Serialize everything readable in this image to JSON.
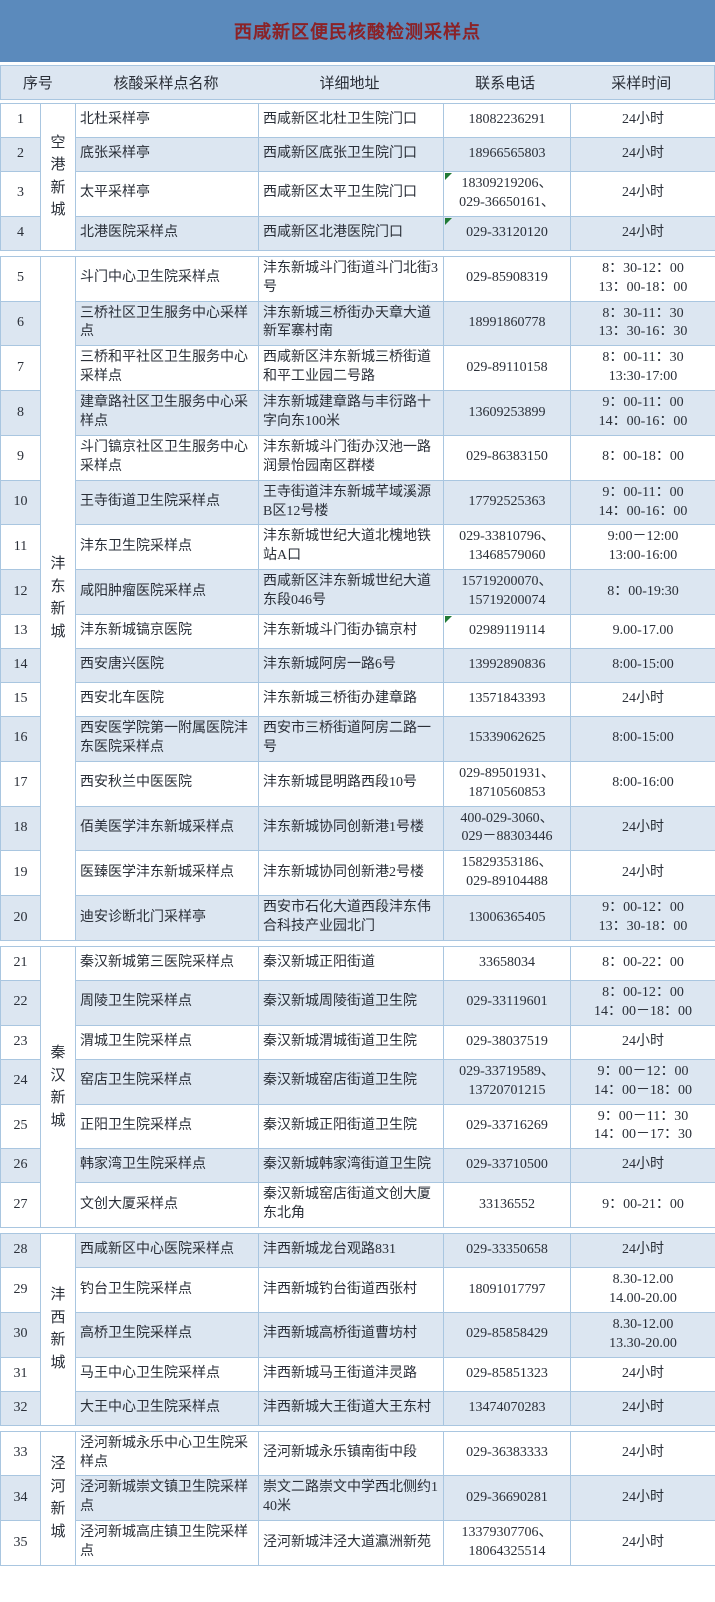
{
  "title": "西咸新区便民核酸检测采样点",
  "header": {
    "no": "序号",
    "name": "核酸采样点名称",
    "address": "详细地址",
    "phone": "联系电话",
    "time": "采样时间"
  },
  "colors": {
    "title_bar": "#5b8abc",
    "title_text": "#8b2227",
    "stripe": "#dce6f1",
    "border": "#a9c6e0",
    "text": "#2a2f38",
    "flag_green": "#217a36"
  },
  "groups": [
    {
      "district": "空港新城",
      "rows": [
        {
          "no": "1",
          "name": "北杜采样亭",
          "address": "西咸新区北杜卫生院门口",
          "phone": "18082236291",
          "time": "24小时"
        },
        {
          "no": "2",
          "name": "底张采样亭",
          "address": "西咸新区底张卫生院门口",
          "phone": "18966565803",
          "time": "24小时"
        },
        {
          "no": "3",
          "name": "太平采样亭",
          "address": "西咸新区太平卫生院门口",
          "phone": "18309219206、\n029-36650161、",
          "time": "24小时",
          "phone_flag": true
        },
        {
          "no": "4",
          "name": "北港医院采样点",
          "address": "西咸新区北港医院门口",
          "phone": "029-33120120",
          "time": "24小时",
          "phone_flag": true
        }
      ]
    },
    {
      "district": "沣东新城",
      "rows": [
        {
          "no": "5",
          "name": "斗门中心卫生院采样点",
          "address": "沣东新城斗门街道斗门北街3号",
          "phone": "029-85908319",
          "time": "8：30-12：00\n13：00-18：00"
        },
        {
          "no": "6",
          "name": "三桥社区卫生服务中心采样点",
          "address": "沣东新城三桥街办天章大道新军寨村南",
          "phone": "18991860778",
          "time": "8：30-11：30\n13：30-16：30"
        },
        {
          "no": "7",
          "name": "三桥和平社区卫生服务中心采样点",
          "address": "西咸新区沣东新城三桥街道和平工业园二号路",
          "phone": "029-89110158",
          "time": "8：00-11：30\n13:30-17:00"
        },
        {
          "no": "8",
          "name": "建章路社区卫生服务中心采样点",
          "address": "沣东新城建章路与丰衍路十字向东100米",
          "phone": "13609253899",
          "time": "9：00-11：00\n14：00-16：00"
        },
        {
          "no": "9",
          "name": "斗门镐京社区卫生服务中心采样点",
          "address": "沣东新城斗门街办汉池一路润景怡园南区群楼",
          "phone": "029-86383150",
          "time": "8：00-18：00"
        },
        {
          "no": "10",
          "name": "王寺街道卫生院采样点",
          "address": "王寺街道沣东新城芊域溪源B区12号楼",
          "phone": "17792525363",
          "time": "9：00-11：00\n14：00-16：00"
        },
        {
          "no": "11",
          "name": "沣东卫生院采样点",
          "address": "沣东新城世纪大道北槐地铁站A口",
          "phone": "029-33810796、\n13468579060",
          "time": "9:00－12:00\n13:00-16:00"
        },
        {
          "no": "12",
          "name": "咸阳肿瘤医院采样点",
          "address": "西咸新区沣东新城世纪大道东段046号",
          "phone": "15719200070、\n15719200074",
          "time": "8：00-19:30"
        },
        {
          "no": "13",
          "name": "沣东新城镐京医院",
          "address": "沣东新城斗门街办镐京村",
          "phone": "02989119114",
          "time": "9.00-17.00",
          "phone_flag": true
        },
        {
          "no": "14",
          "name": "西安唐兴医院",
          "address": "沣东新城阿房一路6号",
          "phone": "13992890836",
          "time": "8:00-15:00"
        },
        {
          "no": "15",
          "name": "西安北车医院",
          "address": "沣东新城三桥街办建章路",
          "phone": "13571843393",
          "time": "24小时"
        },
        {
          "no": "16",
          "name": "西安医学院第一附属医院沣东医院采样点",
          "address": "西安市三桥街道阿房二路一号",
          "phone": "15339062625",
          "time": "8:00-15:00"
        },
        {
          "no": "17",
          "name": "西安秋兰中医医院",
          "address": "沣东新城昆明路西段10号",
          "phone": "029-89501931、\n18710560853",
          "time": "8:00-16:00"
        },
        {
          "no": "18",
          "name": "佰美医学沣东新城采样点",
          "address": "沣东新城协同创新港1号楼",
          "phone": "400-029-3060、\n029－88303446",
          "time": "24小时"
        },
        {
          "no": "19",
          "name": "医臻医学沣东新城采样点",
          "address": "沣东新城协同创新港2号楼",
          "phone": "15829353186、\n029-89104488",
          "time": "24小时"
        },
        {
          "no": "20",
          "name": "迪安诊断北门采样亭",
          "address": "西安市石化大道西段沣东伟合科技产业园北门",
          "phone": "13006365405",
          "time": "9：00-12：00\n13：30-18：00"
        }
      ]
    },
    {
      "district": "秦汉新城",
      "rows": [
        {
          "no": "21",
          "name": "秦汉新城第三医院采样点",
          "address": "秦汉新城正阳街道",
          "phone": "33658034",
          "time": "8：00-22：00"
        },
        {
          "no": "22",
          "name": "周陵卫生院采样点",
          "address": "秦汉新城周陵街道卫生院",
          "phone": "029-33119601",
          "time": "8：00-12：00\n14：00－18：00"
        },
        {
          "no": "23",
          "name": "渭城卫生院采样点",
          "address": "秦汉新城渭城街道卫生院",
          "phone": "029-38037519",
          "time": "24小时"
        },
        {
          "no": "24",
          "name": "窑店卫生院采样点",
          "address": "秦汉新城窑店街道卫生院",
          "phone": "029-33719589、\n13720701215",
          "time": "9：00－12：00\n14：00－18：00"
        },
        {
          "no": "25",
          "name": "正阳卫生院采样点",
          "address": "秦汉新城正阳街道卫生院",
          "phone": "029-33716269",
          "time": "9：00－11：30\n14：00－17：30"
        },
        {
          "no": "26",
          "name": "韩家湾卫生院采样点",
          "address": "秦汉新城韩家湾街道卫生院",
          "phone": "029-33710500",
          "time": "24小时"
        },
        {
          "no": "27",
          "name": "文创大厦采样点",
          "address": "秦汉新城窑店街道文创大厦东北角",
          "phone": "33136552",
          "time": "9：00-21：00"
        }
      ]
    },
    {
      "district": "沣西新城",
      "rows": [
        {
          "no": "28",
          "name": "西咸新区中心医院采样点",
          "address": "沣西新城龙台观路831",
          "phone": "029-33350658",
          "time": "24小时"
        },
        {
          "no": "29",
          "name": "钓台卫生院采样点",
          "address": "沣西新城钓台街道西张村",
          "phone": "18091017797",
          "time": "8.30-12.00\n14.00-20.00"
        },
        {
          "no": "30",
          "name": "高桥卫生院采样点",
          "address": "沣西新城高桥街道曹坊村",
          "phone": "029-85858429",
          "time": "8.30-12.00\n13.30-20.00"
        },
        {
          "no": "31",
          "name": "马王中心卫生院采样点",
          "address": "沣西新城马王街道沣灵路",
          "phone": "029-85851323",
          "time": "24小时"
        },
        {
          "no": "32",
          "name": "大王中心卫生院采样点",
          "address": "沣西新城大王街道大王东村",
          "phone": "13474070283",
          "time": "24小时"
        }
      ]
    },
    {
      "district": "泾河新城",
      "rows": [
        {
          "no": "33",
          "name": "泾河新城永乐中心卫生院采样点",
          "address": "泾河新城永乐镇南街中段",
          "phone": "029-36383333",
          "time": "24小时"
        },
        {
          "no": "34",
          "name": "泾河新城崇文镇卫生院采样点",
          "address": "崇文二路崇文中学西北侧约140米",
          "phone": "029-36690281",
          "time": "24小时"
        },
        {
          "no": "35",
          "name": "泾河新城高庄镇卫生院采样点",
          "address": "泾河新城沣泾大道瀛洲新苑",
          "phone": "13379307706、\n18064325514",
          "time": "24小时"
        }
      ]
    }
  ]
}
